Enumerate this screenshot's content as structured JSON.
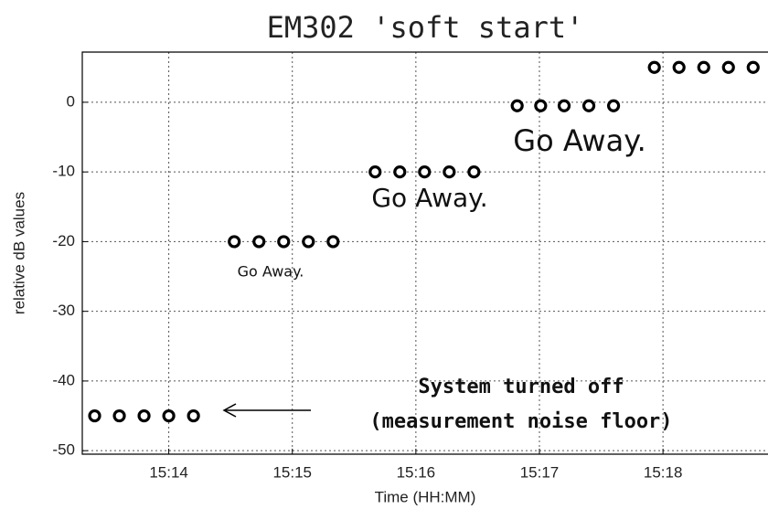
{
  "chart_data": {
    "type": "scatter",
    "title": "EM302 'soft start'",
    "xlabel": "Time (HH:MM)",
    "ylabel": "relative dB values",
    "x": [
      913.4,
      913.6,
      913.8,
      914.0,
      914.2,
      914.53,
      914.73,
      914.93,
      915.13,
      915.33,
      915.67,
      915.87,
      916.07,
      916.27,
      916.47,
      916.82,
      917.01,
      917.2,
      917.4,
      917.6,
      917.93,
      918.13,
      918.33,
      918.53,
      918.73
    ],
    "values": [
      -45,
      -45,
      -45,
      -45,
      -45,
      -20,
      -20,
      -20,
      -20,
      -20,
      -10,
      -10,
      -10,
      -10,
      -10,
      -0.5,
      -0.5,
      -0.5,
      -0.5,
      -0.5,
      5,
      5,
      5,
      5,
      5
    ],
    "color": "#000000",
    "xlim": [
      913.3,
      918.85
    ],
    "ylim": [
      -50.5,
      7.2
    ],
    "xticks": [
      {
        "value": 914,
        "label": "15:14"
      },
      {
        "value": 915,
        "label": "15:15"
      },
      {
        "value": 916,
        "label": "15:16"
      },
      {
        "value": 917,
        "label": "15:17"
      },
      {
        "value": 918,
        "label": "15:18"
      }
    ],
    "yticks": [
      -50,
      -40,
      -30,
      -20,
      -10,
      0
    ],
    "grid": true,
    "annotations": [
      "Go Away.",
      "Go Away.",
      "Go Away.",
      "System turned off",
      "(measurement noise floor)"
    ]
  }
}
